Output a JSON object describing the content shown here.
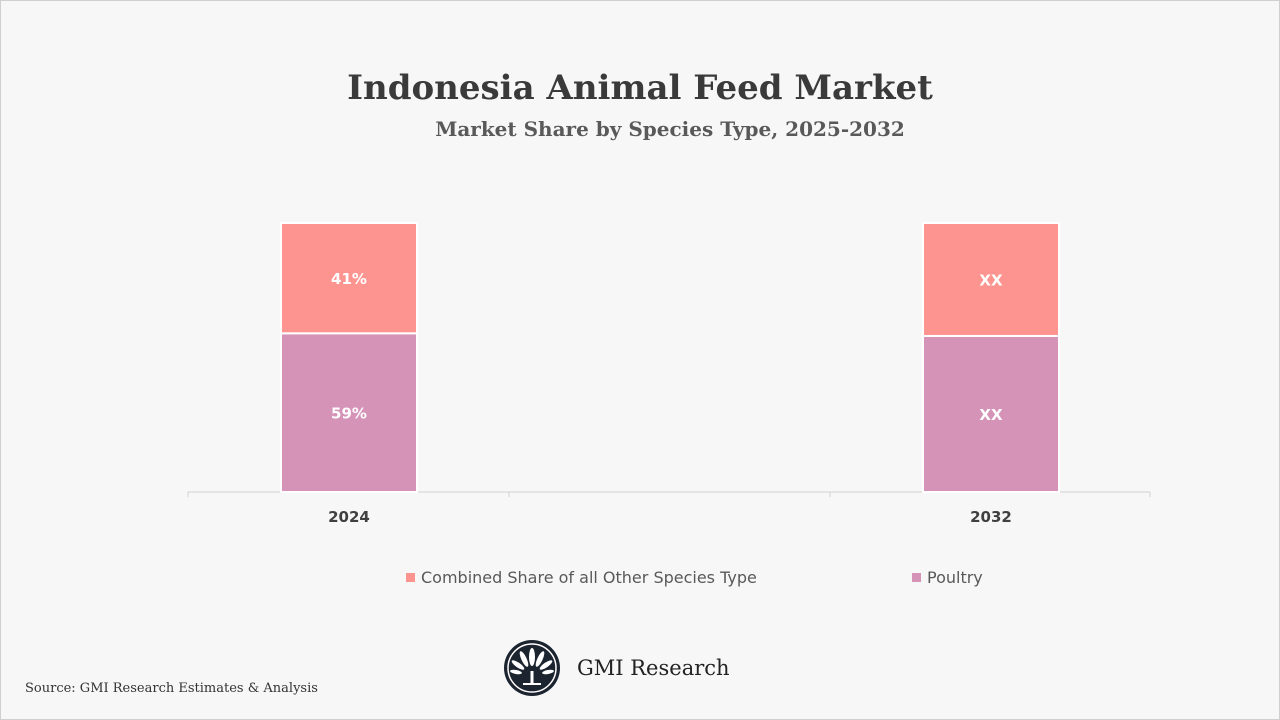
{
  "chart_data": {
    "type": "bar",
    "stacked": true,
    "title": "Indonesia Animal Feed Market",
    "subtitle": "Market Share by Species Type, 2025-2032",
    "categories": [
      "2024",
      "2032"
    ],
    "series": [
      {
        "name": "Poultry",
        "values": [
          59,
          null
        ],
        "labels": [
          "59%",
          "XX"
        ],
        "color": "#d593b8"
      },
      {
        "name": "Combined Share of all Other Species Type",
        "values": [
          41,
          null
        ],
        "labels": [
          "41%",
          "XX"
        ],
        "color": "#fe9490"
      }
    ],
    "ylim": [
      0,
      100
    ],
    "grid": false,
    "legend": "bottom"
  },
  "source": "Source: GMI Research Estimates & Analysis",
  "brand": "GMI Research"
}
